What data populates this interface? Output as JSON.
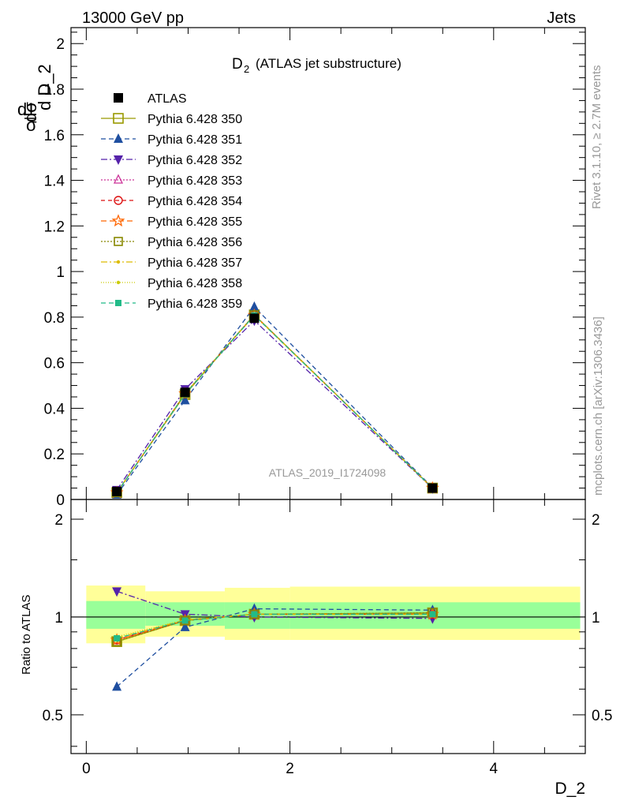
{
  "header": {
    "energy_label": "13000 GeV pp",
    "process_label": "Jets",
    "side_label_rivet": "Rivet 3.1.10, ≥ 2.7M events",
    "side_label_mcplots": "mcplots.cern.ch [arXiv:1306.3436]"
  },
  "plot_title": {
    "main": "D",
    "sub": "2",
    "rest": "(ATLAS jet substructure)"
  },
  "analysis_id": "ATLAS_2019_I1724098",
  "ylabel_parts": {
    "one": "1",
    "sigma": "σ",
    "d_frac_num": "d",
    "dsigma": "dσ",
    "denom": "d D_2"
  },
  "ratio_ylabel": "Ratio to ATLAS",
  "xlabel": "D_2",
  "colors": {
    "band_inner": "#99ff99",
    "band_outer": "#ffff99",
    "axis": "#000000",
    "gray_text": "#999999"
  },
  "chart_data": [
    {
      "type": "line",
      "panel": "main",
      "xlim": [
        -0.15,
        4.9
      ],
      "ylim": [
        0,
        2.07
      ],
      "x_ticks": [
        0,
        2,
        4
      ],
      "y_ticks": [
        "0",
        "0.2",
        "0.4",
        "0.6",
        "0.8",
        "1",
        "1.2",
        "1.4",
        "1.6",
        "1.8",
        "2"
      ],
      "x": [
        0.3,
        0.97,
        1.65,
        3.4
      ],
      "series": [
        {
          "name": "ATLAS",
          "color": "#000000",
          "marker": "square-filled",
          "dash": "none",
          "values": [
            0.035,
            0.47,
            0.795,
            0.05
          ]
        },
        {
          "name": "Pythia 6.428 350",
          "color": "#999900",
          "marker": "square-open",
          "dash": "solid",
          "values": [
            0.03,
            0.46,
            0.81,
            0.05
          ]
        },
        {
          "name": "Pythia 6.428 351",
          "color": "#1f4fa0",
          "marker": "triangle-up",
          "dash": "6,4",
          "values": [
            0.021,
            0.435,
            0.845,
            0.052
          ]
        },
        {
          "name": "Pythia 6.428 352",
          "color": "#5522aa",
          "marker": "triangle-down",
          "dash": "8,3,2,3",
          "values": [
            0.042,
            0.484,
            0.785,
            0.049
          ]
        },
        {
          "name": "Pythia 6.428 353",
          "color": "#cc3399",
          "marker": "triangle-open",
          "dash": "2,2",
          "values": [
            0.03,
            0.465,
            0.81,
            0.05
          ]
        },
        {
          "name": "Pythia 6.428 354",
          "color": "#dd1111",
          "marker": "circle-open",
          "dash": "5,4",
          "values": [
            0.03,
            0.463,
            0.81,
            0.05
          ]
        },
        {
          "name": "Pythia 6.428 355",
          "color": "#ff6600",
          "marker": "star-open",
          "dash": "7,4",
          "values": [
            0.03,
            0.464,
            0.808,
            0.05
          ]
        },
        {
          "name": "Pythia 6.428 356",
          "color": "#888800",
          "marker": "square-open-small",
          "dash": "2,2",
          "values": [
            0.03,
            0.465,
            0.81,
            0.05
          ]
        },
        {
          "name": "Pythia 6.428 357",
          "color": "#ddbb00",
          "marker": "dot",
          "dash": "8,3,2,3",
          "values": [
            0.03,
            0.463,
            0.809,
            0.05
          ]
        },
        {
          "name": "Pythia 6.428 358",
          "color": "#cccc00",
          "marker": "dot",
          "dash": "1,2",
          "values": [
            0.031,
            0.464,
            0.81,
            0.05
          ]
        },
        {
          "name": "Pythia 6.428 359",
          "color": "#22bb88",
          "marker": "square-filled-small",
          "dash": "6,4",
          "values": [
            0.03,
            0.462,
            0.808,
            0.05
          ]
        }
      ]
    },
    {
      "type": "line",
      "panel": "ratio",
      "xlim": [
        -0.15,
        4.9
      ],
      "ylim": [
        0.38,
        2.3
      ],
      "log_scale_y": true,
      "x_ticks": [
        "0",
        "2",
        "4"
      ],
      "y_ticks": [
        "0.5",
        "1",
        "2"
      ],
      "xlabel": "D_2",
      "ylabel": "Ratio to ATLAS",
      "bands": [
        {
          "x0": 0.0,
          "x1": 0.58,
          "inner": [
            0.92,
            1.12
          ],
          "outer": [
            0.83,
            1.25
          ]
        },
        {
          "x0": 0.58,
          "x1": 1.36,
          "inner": [
            0.94,
            1.11
          ],
          "outer": [
            0.87,
            1.2
          ]
        },
        {
          "x0": 1.36,
          "x1": 2.0,
          "inner": [
            0.92,
            1.11
          ],
          "outer": [
            0.85,
            1.23
          ]
        },
        {
          "x0": 2.0,
          "x1": 4.85,
          "inner": [
            0.92,
            1.11
          ],
          "outer": [
            0.85,
            1.24
          ]
        }
      ],
      "x": [
        0.3,
        0.97,
        1.65,
        3.4
      ],
      "series": [
        {
          "name": "Pythia 6.428 350",
          "values": [
            0.84,
            0.975,
            1.02,
            1.03
          ]
        },
        {
          "name": "Pythia 6.428 351",
          "values": [
            0.61,
            0.93,
            1.06,
            1.05
          ]
        },
        {
          "name": "Pythia 6.428 352",
          "values": [
            1.2,
            1.02,
            1.0,
            0.99
          ]
        },
        {
          "name": "Pythia 6.428 353",
          "values": [
            0.85,
            0.98,
            1.02,
            1.02
          ]
        },
        {
          "name": "Pythia 6.428 354",
          "values": [
            0.85,
            0.975,
            1.02,
            1.02
          ]
        },
        {
          "name": "Pythia 6.428 355",
          "values": [
            0.85,
            0.975,
            1.02,
            1.02
          ]
        },
        {
          "name": "Pythia 6.428 356",
          "values": [
            0.84,
            0.975,
            1.02,
            1.03
          ]
        },
        {
          "name": "Pythia 6.428 357",
          "values": [
            0.86,
            0.98,
            1.02,
            1.02
          ]
        },
        {
          "name": "Pythia 6.428 358",
          "values": [
            0.87,
            0.98,
            1.02,
            1.02
          ]
        },
        {
          "name": "Pythia 6.428 359",
          "values": [
            0.86,
            0.975,
            1.02,
            1.02
          ]
        }
      ]
    }
  ]
}
